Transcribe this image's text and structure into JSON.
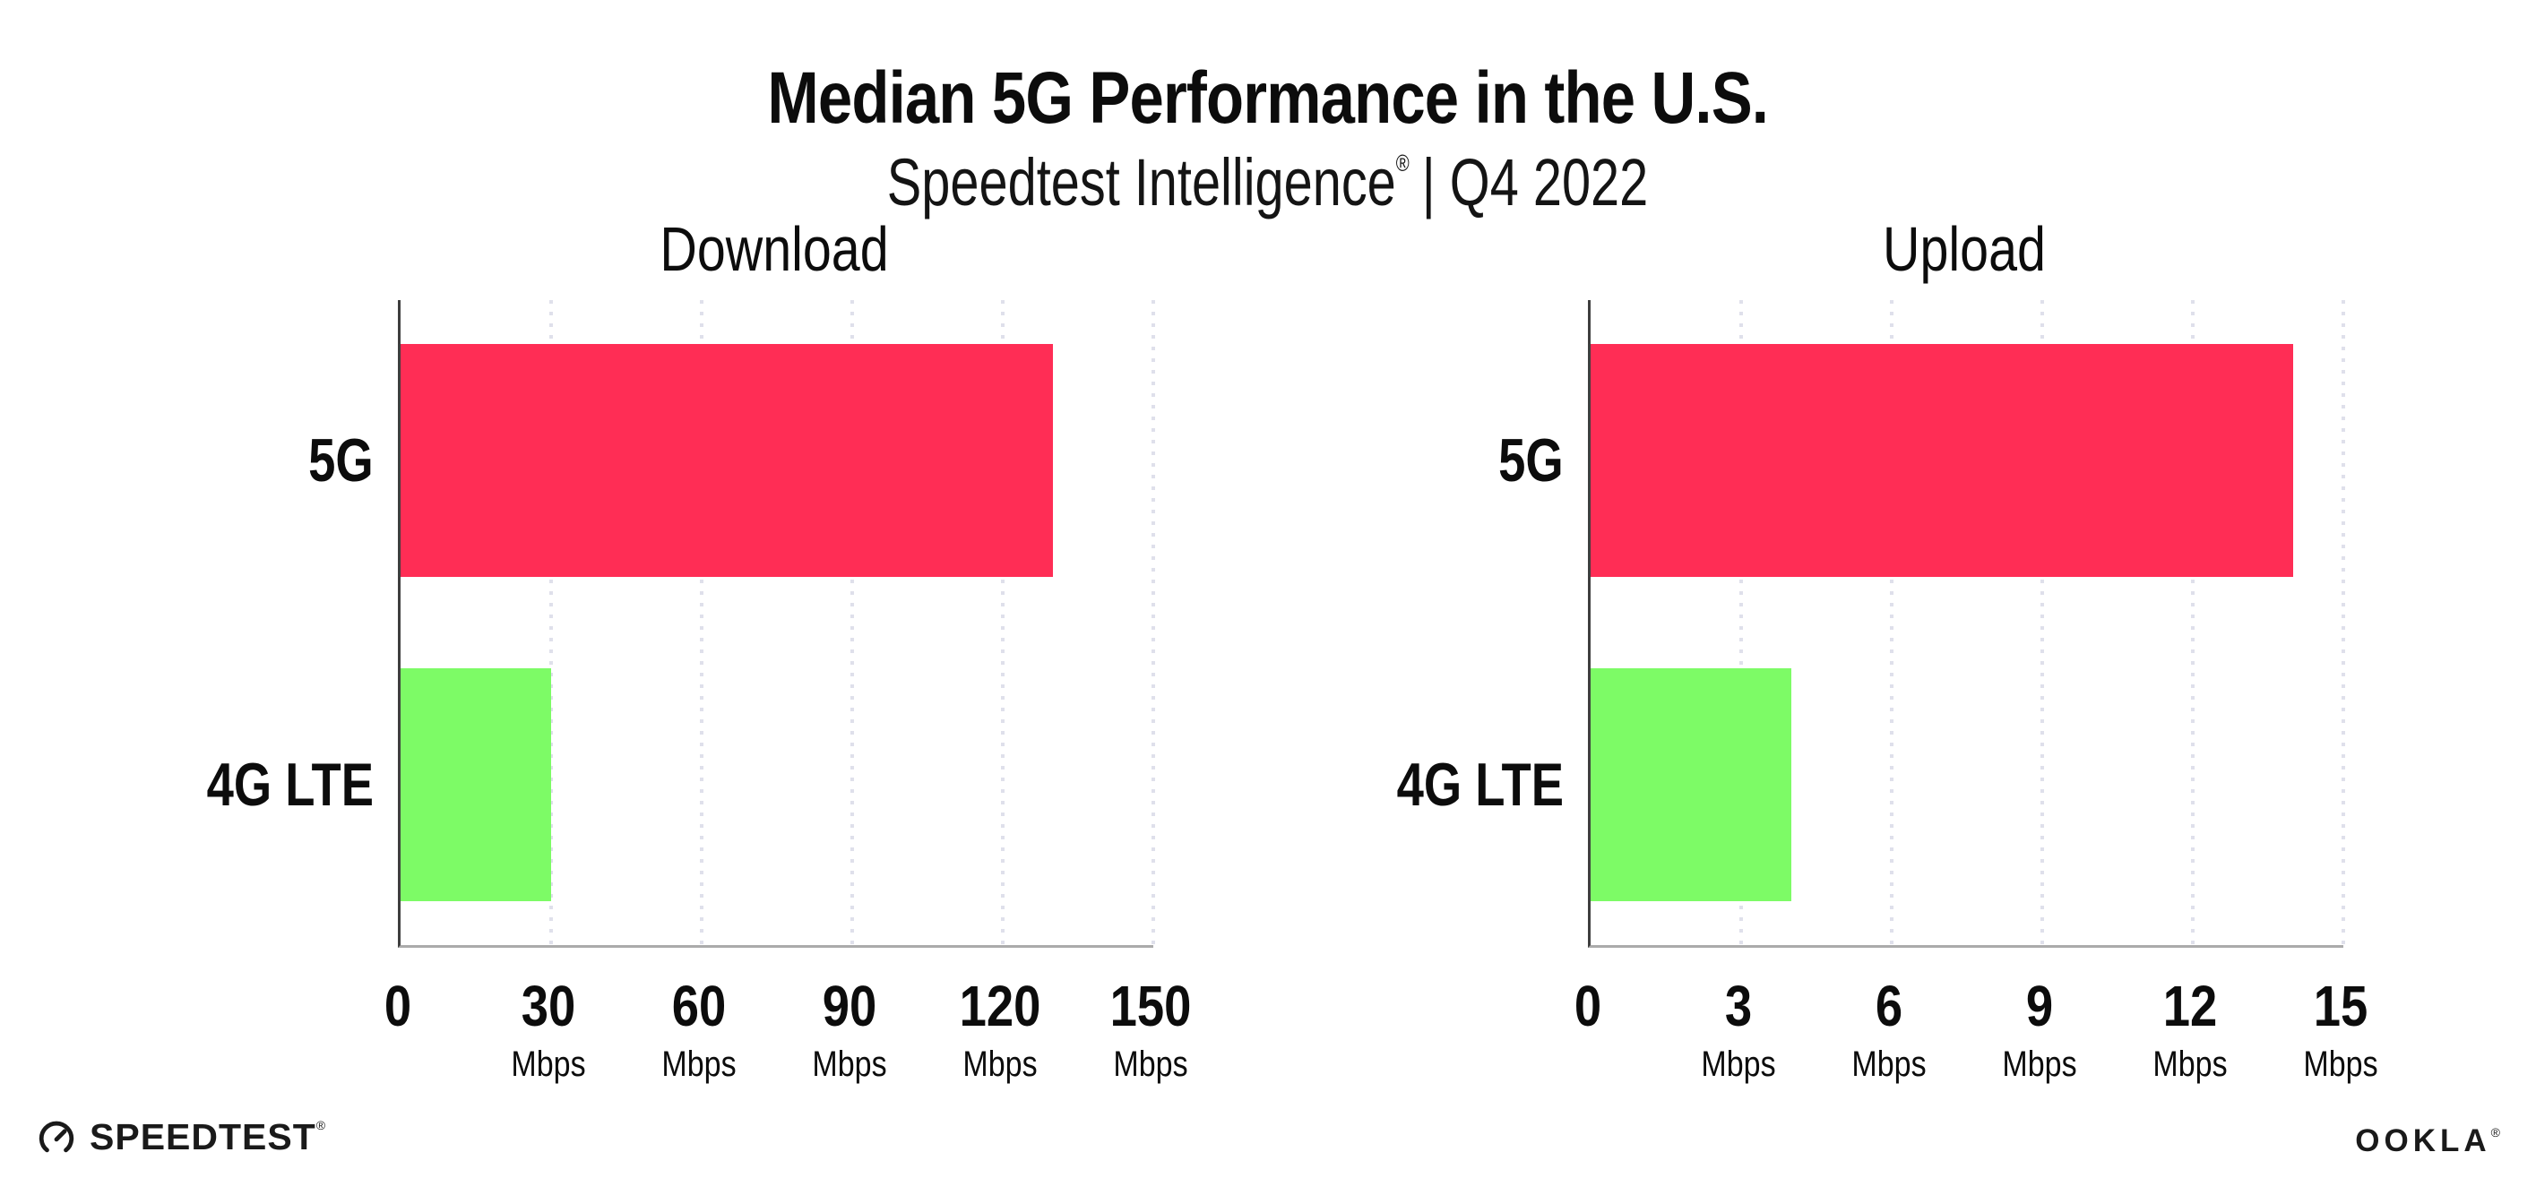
{
  "header": {
    "title": "Median 5G Performance in the U.S.",
    "subtitle_brand": "Speedtest Intelligence",
    "subtitle_reg": "®",
    "subtitle_rest": "| Q4 2022"
  },
  "footer": {
    "speedtest_wordmark": "SPEEDTEST",
    "speedtest_reg": "®",
    "ookla_wordmark": "OOKLA",
    "ookla_reg": "®"
  },
  "colors": {
    "bar_5g": "#FF2D55",
    "bar_4g_lte": "#7DFB66",
    "y_axis": "#3e3e3e",
    "x_axis": "#ababab",
    "gridline": "#dfe0eb",
    "text": "#0c0c0c"
  },
  "chart_data": [
    {
      "type": "bar",
      "orientation": "horizontal",
      "title": "Download",
      "categories": [
        "5G",
        "4G LTE"
      ],
      "values": [
        130,
        30
      ],
      "unit": "Mbps",
      "xlabel": "",
      "ylabel": "",
      "xlim": [
        0,
        150
      ],
      "xticks": [
        0,
        30,
        60,
        90,
        120,
        150
      ],
      "series_colors": [
        "#FF2D55",
        "#7DFB66"
      ],
      "grid": "vertical-dotted",
      "legend": "none"
    },
    {
      "type": "bar",
      "orientation": "horizontal",
      "title": "Upload",
      "categories": [
        "5G",
        "4G LTE"
      ],
      "values": [
        14,
        4
      ],
      "unit": "Mbps",
      "xlabel": "",
      "ylabel": "",
      "xlim": [
        0,
        15
      ],
      "xticks": [
        0,
        3,
        6,
        9,
        12,
        15
      ],
      "series_colors": [
        "#FF2D55",
        "#7DFB66"
      ],
      "grid": "vertical-dotted",
      "legend": "none"
    }
  ]
}
